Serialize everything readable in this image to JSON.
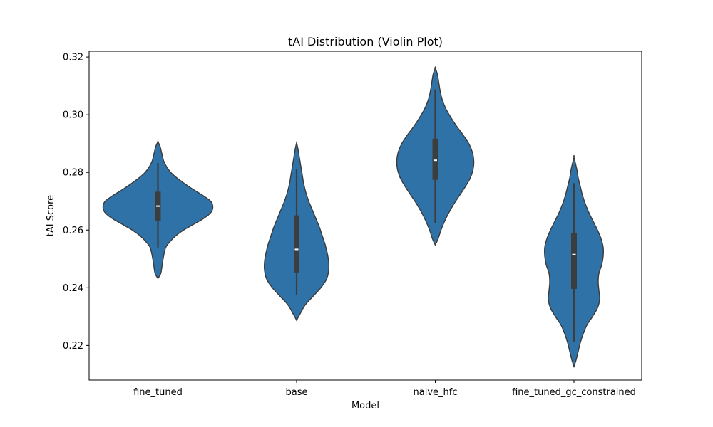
{
  "chart_data": {
    "type": "violin",
    "title": "tAI Distribution (Violin Plot)",
    "xlabel": "Model",
    "ylabel": "tAI Score",
    "ylim": [
      0.208,
      0.322
    ],
    "yticks": [
      0.22,
      0.24,
      0.26,
      0.28,
      0.3,
      0.32
    ],
    "ytick_labels": [
      "0.22",
      "0.24",
      "0.26",
      "0.28",
      "0.30",
      "0.32"
    ],
    "categories": [
      "fine_tuned",
      "base",
      "naive_hfc",
      "fine_tuned_gc_constrained"
    ],
    "grid": false,
    "colors": {
      "violin_fill": "#2f72a8",
      "violin_edge": "#3a3a3a",
      "box": "#3d3d3d",
      "median": "#ffffff"
    },
    "violins": [
      {
        "category": "fine_tuned",
        "min": 0.254,
        "q1": 0.2633,
        "median": 0.2683,
        "q3": 0.2733,
        "max": 0.2833,
        "kde_range": [
          0.2432,
          0.2907
        ],
        "half_widths": [
          [
            0.2432,
            0.0
          ],
          [
            0.245,
            0.004
          ],
          [
            0.248,
            0.006
          ],
          [
            0.251,
            0.008
          ],
          [
            0.254,
            0.011
          ],
          [
            0.256,
            0.017
          ],
          [
            0.258,
            0.025
          ],
          [
            0.26,
            0.036
          ],
          [
            0.262,
            0.05
          ],
          [
            0.264,
            0.064
          ],
          [
            0.266,
            0.074
          ],
          [
            0.268,
            0.077
          ],
          [
            0.27,
            0.074
          ],
          [
            0.272,
            0.063
          ],
          [
            0.274,
            0.05
          ],
          [
            0.276,
            0.038
          ],
          [
            0.278,
            0.027
          ],
          [
            0.28,
            0.018
          ],
          [
            0.282,
            0.012
          ],
          [
            0.284,
            0.008
          ],
          [
            0.287,
            0.005
          ],
          [
            0.289,
            0.003
          ],
          [
            0.2907,
            0.0
          ]
        ]
      },
      {
        "category": "base",
        "min": 0.2375,
        "q1": 0.2453,
        "median": 0.2533,
        "q3": 0.2651,
        "max": 0.2813,
        "kde_range": [
          0.2287,
          0.2903
        ],
        "half_widths": [
          [
            0.2287,
            0.0
          ],
          [
            0.231,
            0.005
          ],
          [
            0.234,
            0.012
          ],
          [
            0.237,
            0.023
          ],
          [
            0.24,
            0.034
          ],
          [
            0.243,
            0.042
          ],
          [
            0.246,
            0.045
          ],
          [
            0.249,
            0.045
          ],
          [
            0.252,
            0.043
          ],
          [
            0.255,
            0.04
          ],
          [
            0.258,
            0.036
          ],
          [
            0.261,
            0.032
          ],
          [
            0.264,
            0.027
          ],
          [
            0.267,
            0.022
          ],
          [
            0.27,
            0.017
          ],
          [
            0.273,
            0.013
          ],
          [
            0.276,
            0.01
          ],
          [
            0.279,
            0.008
          ],
          [
            0.282,
            0.006
          ],
          [
            0.285,
            0.004
          ],
          [
            0.288,
            0.002
          ],
          [
            0.2903,
            0.0
          ]
        ]
      },
      {
        "category": "naive_hfc",
        "min": 0.2623,
        "q1": 0.2774,
        "median": 0.2842,
        "q3": 0.2917,
        "max": 0.3088,
        "kde_range": [
          0.2548,
          0.3163
        ],
        "half_widths": [
          [
            0.2548,
            0.0
          ],
          [
            0.257,
            0.004
          ],
          [
            0.26,
            0.008
          ],
          [
            0.263,
            0.013
          ],
          [
            0.266,
            0.019
          ],
          [
            0.269,
            0.026
          ],
          [
            0.272,
            0.034
          ],
          [
            0.275,
            0.042
          ],
          [
            0.278,
            0.049
          ],
          [
            0.281,
            0.053
          ],
          [
            0.284,
            0.054
          ],
          [
            0.287,
            0.052
          ],
          [
            0.29,
            0.047
          ],
          [
            0.293,
            0.039
          ],
          [
            0.296,
            0.03
          ],
          [
            0.299,
            0.022
          ],
          [
            0.302,
            0.015
          ],
          [
            0.305,
            0.01
          ],
          [
            0.308,
            0.007
          ],
          [
            0.311,
            0.005
          ],
          [
            0.314,
            0.003
          ],
          [
            0.3163,
            0.0
          ]
        ]
      },
      {
        "category": "fine_tuned_gc_constrained",
        "min": 0.2213,
        "q1": 0.2396,
        "median": 0.2515,
        "q3": 0.2591,
        "max": 0.2763,
        "kde_range": [
          0.2127,
          0.2853
        ],
        "half_widths": [
          [
            0.2127,
            0.0
          ],
          [
            0.215,
            0.003
          ],
          [
            0.218,
            0.006
          ],
          [
            0.221,
            0.009
          ],
          [
            0.224,
            0.013
          ],
          [
            0.227,
            0.018
          ],
          [
            0.23,
            0.026
          ],
          [
            0.233,
            0.033
          ],
          [
            0.236,
            0.036
          ],
          [
            0.239,
            0.035
          ],
          [
            0.242,
            0.034
          ],
          [
            0.245,
            0.035
          ],
          [
            0.248,
            0.039
          ],
          [
            0.251,
            0.041
          ],
          [
            0.254,
            0.041
          ],
          [
            0.257,
            0.038
          ],
          [
            0.26,
            0.033
          ],
          [
            0.263,
            0.027
          ],
          [
            0.266,
            0.021
          ],
          [
            0.269,
            0.016
          ],
          [
            0.272,
            0.012
          ],
          [
            0.275,
            0.009
          ],
          [
            0.278,
            0.006
          ],
          [
            0.281,
            0.004
          ],
          [
            0.2853,
            0.0
          ]
        ]
      }
    ]
  }
}
